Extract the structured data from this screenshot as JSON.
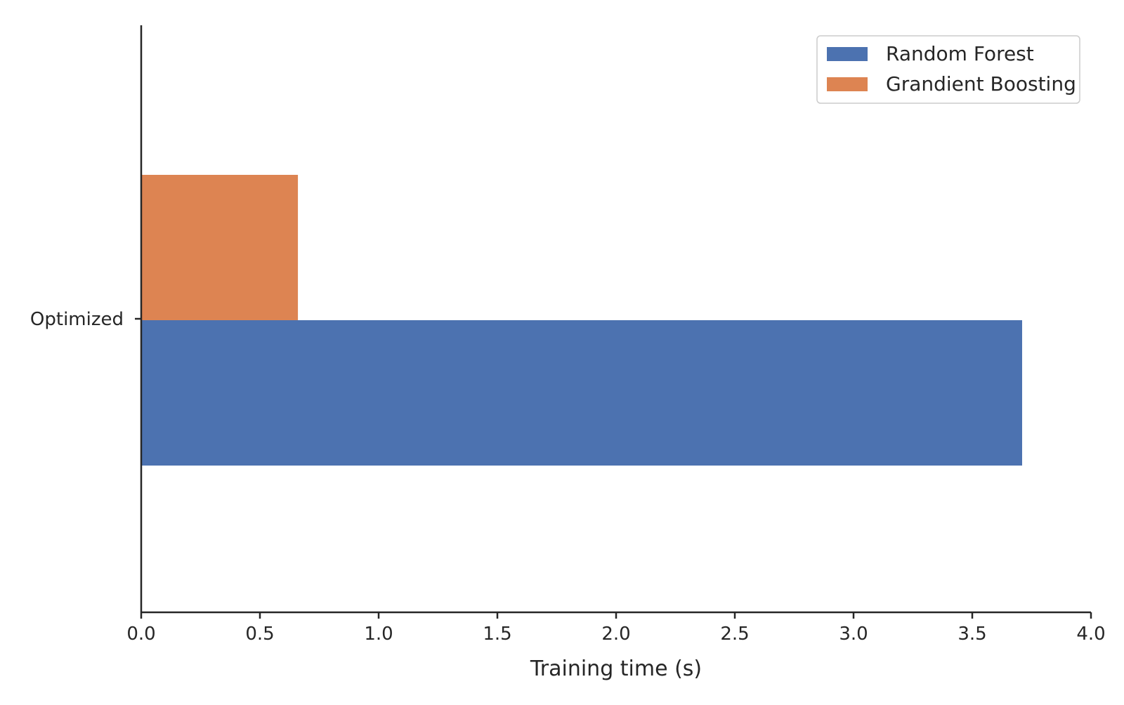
{
  "chart_data": {
    "type": "bar",
    "orientation": "horizontal",
    "categories": [
      "Optimized"
    ],
    "series": [
      {
        "name": "Random Forest",
        "values": [
          3.71
        ],
        "color": "#4c72b0"
      },
      {
        "name": "Grandient Boosting",
        "values": [
          0.66
        ],
        "color": "#dd8452"
      }
    ],
    "xlabel": "Training time (s)",
    "ylabel": "",
    "title": "",
    "xlim": [
      0,
      4.0
    ],
    "xticks": [
      "0.0",
      "0.5",
      "1.0",
      "1.5",
      "2.0",
      "2.5",
      "3.0",
      "3.5",
      "4.0"
    ],
    "grid": false,
    "legend_position": "top-right"
  }
}
